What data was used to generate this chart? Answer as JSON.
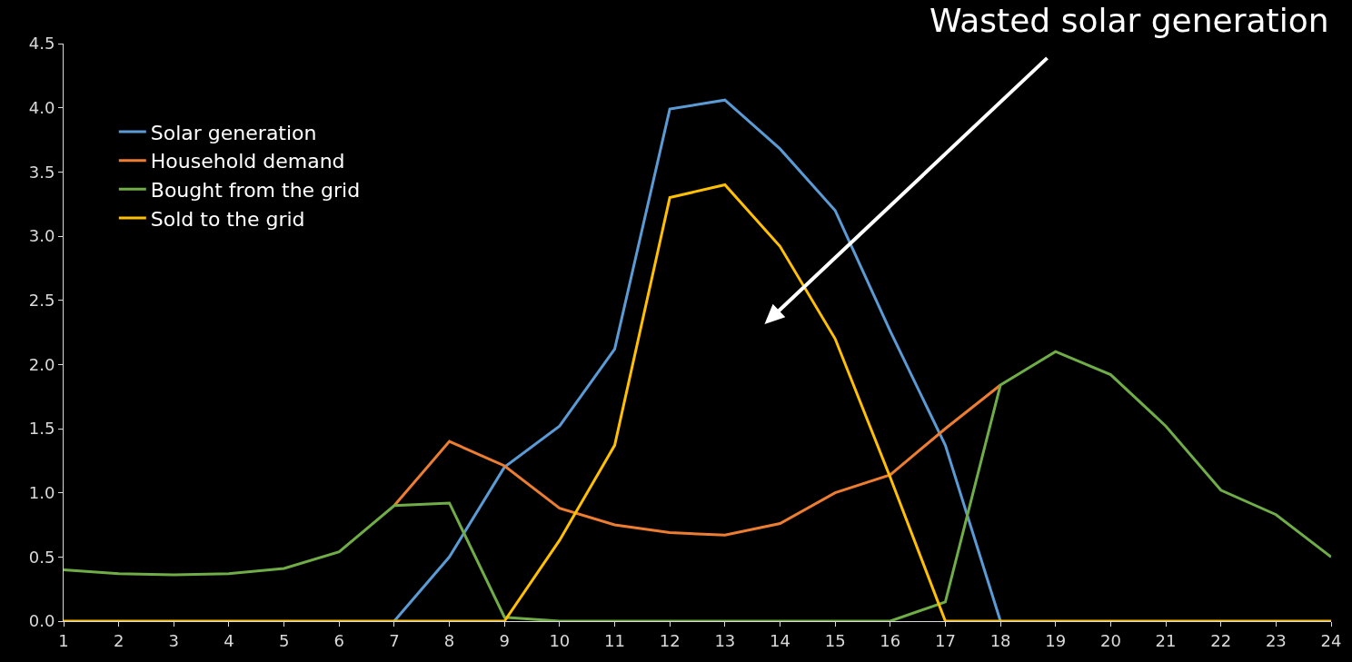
{
  "chart_data": {
    "type": "line",
    "x": [
      1,
      2,
      3,
      4,
      5,
      6,
      7,
      8,
      9,
      10,
      11,
      12,
      13,
      14,
      15,
      16,
      17,
      18,
      19,
      20,
      21,
      22,
      23,
      24
    ],
    "series": [
      {
        "name": "Solar generation",
        "color": "#5b9bd5",
        "values": [
          null,
          null,
          null,
          null,
          null,
          null,
          0,
          0.5,
          1.2,
          1.52,
          2.12,
          3.99,
          4.06,
          3.68,
          3.2,
          2.26,
          1.37,
          0,
          null,
          null,
          null,
          null,
          null,
          null
        ]
      },
      {
        "name": "Household demand",
        "color": "#ed7d31",
        "values": [
          null,
          null,
          null,
          null,
          null,
          null,
          0.9,
          1.4,
          1.21,
          0.88,
          0.75,
          0.69,
          0.67,
          0.76,
          1.0,
          1.14,
          1.5,
          1.84,
          null,
          null,
          null,
          null,
          null,
          null
        ]
      },
      {
        "name": "Bought from the grid",
        "color": "#70ad47",
        "values": [
          0.4,
          0.37,
          0.36,
          0.37,
          0.41,
          0.54,
          0.9,
          0.92,
          0.03,
          0,
          0,
          0,
          0,
          0,
          0,
          0,
          0.15,
          1.84,
          2.1,
          1.92,
          1.52,
          1.02,
          0.83,
          0.5
        ]
      },
      {
        "name": "Sold to the grid",
        "color": "#ffc000",
        "values": [
          0,
          0,
          0,
          0,
          0,
          0,
          0,
          0,
          0,
          0.63,
          1.37,
          3.3,
          3.4,
          2.92,
          2.2,
          1.12,
          0,
          0,
          0,
          0,
          0,
          0,
          0,
          0
        ]
      }
    ],
    "xlim": [
      1,
      24
    ],
    "xticks": [
      1,
      2,
      3,
      4,
      5,
      6,
      7,
      8,
      9,
      10,
      11,
      12,
      13,
      14,
      15,
      16,
      17,
      18,
      19,
      20,
      21,
      22,
      23,
      24
    ],
    "ylim": [
      0,
      4.5
    ],
    "yticks": [
      {
        "value": 0,
        "label": "0.0"
      },
      {
        "value": 0.5,
        "label": "0.5"
      },
      {
        "value": 1,
        "label": "1.0"
      },
      {
        "value": 1.5,
        "label": "1.5"
      },
      {
        "value": 2,
        "label": "2.0"
      },
      {
        "value": 2.5,
        "label": "2.5"
      },
      {
        "value": 3,
        "label": "3.0"
      },
      {
        "value": 3.5,
        "label": "3.5"
      },
      {
        "value": 4,
        "label": "4.0"
      },
      {
        "value": 4.5,
        "label": "4.5"
      }
    ],
    "annotations": [
      "Wasted solar generation"
    ],
    "legend": "top left",
    "grid": false,
    "marker": "none",
    "line_style": "solid"
  }
}
